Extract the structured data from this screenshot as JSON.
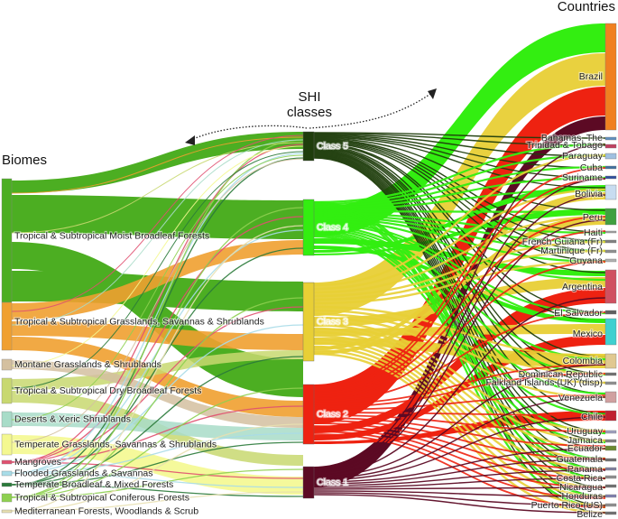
{
  "headings": {
    "biomes": "Biomes",
    "shi_line1": "SHI",
    "shi_line2": "classes",
    "countries": "Countries"
  },
  "classes": [
    {
      "label": "Class 5",
      "color": "#1f3d0c"
    },
    {
      "label": "Class 4",
      "color": "#33ee11"
    },
    {
      "label": "Class 3",
      "color": "#e8cf35"
    },
    {
      "label": "Class 2",
      "color": "#ee2211"
    },
    {
      "label": "Class 1",
      "color": "#5c0a24"
    }
  ],
  "biomes": [
    {
      "label": "Tropical & Subtropical Moist Broadleaf Forests",
      "color": "#4cae22"
    },
    {
      "label": "Tropical & Subtropical Grasslands, Savannas & Shrublands",
      "color": "#f0a030"
    },
    {
      "label": "Montane Grasslands & Shrublands",
      "color": "#d4c0a0"
    },
    {
      "label": "Tropical & Subtropical Dry Broadleaf Forests",
      "color": "#c8d870"
    },
    {
      "label": "Deserts & Xeric Shrublands",
      "color": "#a8dcc8"
    },
    {
      "label": "Temperate Grasslands, Savannas & Shrublands",
      "color": "#f4f890"
    },
    {
      "label": "Mangroves",
      "color": "#e05070"
    },
    {
      "label": "Flooded Grasslands & Savannas",
      "color": "#a8dce8"
    },
    {
      "label": "Temperate Broadleaf & Mixed Forests",
      "color": "#2a7a3a"
    },
    {
      "label": "Tropical & Subtropical Coniferous Forests",
      "color": "#8ed050"
    },
    {
      "label": "Mediterranean Forests, Woodlands & Scrub",
      "color": "#e8e0b0"
    }
  ],
  "countries": [
    {
      "label": "Brazil",
      "color": "#f08020"
    },
    {
      "label": "Bahamas, The",
      "color": "#6090c0"
    },
    {
      "label": "Trinidad & Tobago",
      "color": "#c04060"
    },
    {
      "label": "Paraguay",
      "color": "#a0c0e0"
    },
    {
      "label": "Cuba",
      "color": "#4070a0"
    },
    {
      "label": "Suriname",
      "color": "#3050a0"
    },
    {
      "label": "Bolivia",
      "color": "#c8dcf0"
    },
    {
      "label": "Peru",
      "color": "#40a040"
    },
    {
      "label": "Haiti",
      "color": "#a0a0a0"
    },
    {
      "label": "French Guiana (Fr)",
      "color": "#808080"
    },
    {
      "label": "Martinique (Fr)",
      "color": "#909090"
    },
    {
      "label": "Guyana",
      "color": "#b0b0b0"
    },
    {
      "label": "Argentina",
      "color": "#d05060"
    },
    {
      "label": "El Salvador",
      "color": "#606060"
    },
    {
      "label": "Mexico",
      "color": "#40d0d0"
    },
    {
      "label": "Colombia",
      "color": "#e0c890"
    },
    {
      "label": "Dominican Republic",
      "color": "#707070"
    },
    {
      "label": "Falkland Islands (UK) (disp)",
      "color": "#909090"
    },
    {
      "label": "Venezuela",
      "color": "#d0a0a0"
    },
    {
      "label": "Chile",
      "color": "#c02030"
    },
    {
      "label": "Uruguay",
      "color": "#a0a0c0"
    },
    {
      "label": "Jamaica",
      "color": "#808080"
    },
    {
      "label": "Ecuador",
      "color": "#6a8a30"
    },
    {
      "label": "Guatemala",
      "color": "#707070"
    },
    {
      "label": "Panama",
      "color": "#8080a0"
    },
    {
      "label": "Costa Rica",
      "color": "#909090"
    },
    {
      "label": "Nicaragua",
      "color": "#707070"
    },
    {
      "label": "Honduras",
      "color": "#8080b0"
    },
    {
      "label": "Puerto Rico (US)",
      "color": "#909090"
    },
    {
      "label": "Belize",
      "color": "#707070"
    }
  ]
}
